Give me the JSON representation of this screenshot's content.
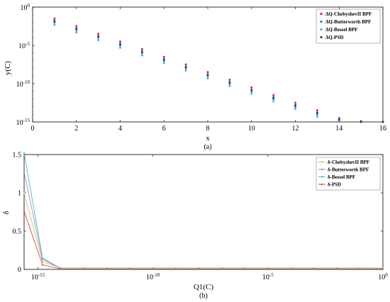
{
  "colors": {
    "chebyshev": "#e02020",
    "butterworth": "#2b6fb8",
    "bessel": "#34b6d8",
    "psd": "#1f3f8f",
    "delta_chebyshev": "#c8c878",
    "delta_butterworth": "#9b8fc6",
    "delta_bessel": "#4fb7c0",
    "delta_psd": "#e04a3c"
  },
  "chart_data": [
    {
      "type": "scatter",
      "caption": "(a)",
      "xlabel": "x",
      "ylabel": "y(C)",
      "xlim": [
        0,
        16
      ],
      "ylim_log10": [
        -15,
        0
      ],
      "yscale": "log",
      "x_ticks": [
        "0",
        "2",
        "4",
        "6",
        "8",
        "10",
        "12",
        "14",
        "16"
      ],
      "y_ticks": [
        {
          "base": "10",
          "exp": "0"
        },
        {
          "base": "10",
          "exp": "-5"
        },
        {
          "base": "10",
          "exp": "-10"
        },
        {
          "base": "10",
          "exp": "-15"
        }
      ],
      "legend_position": "top-right",
      "x": [
        1,
        2,
        3,
        4,
        5,
        6,
        7,
        8,
        9,
        10,
        11,
        12,
        13,
        14,
        15,
        16
      ],
      "series": [
        {
          "name": "ΔQ-ChebyshevII BPF",
          "color_key": "chebyshev",
          "log10_values": [
            -1.5,
            -2.5,
            -3.5,
            -4.5,
            -5.5,
            -6.5,
            -7.5,
            -8.5,
            -9.5,
            -10.5,
            -11.5,
            -12.5,
            -13.5,
            -14.5,
            -14.9,
            -15
          ]
        },
        {
          "name": "ΔQ-Butterworth BPF",
          "color_key": "butterworth",
          "log10_values": [
            -2.0,
            -3.0,
            -4.0,
            -5.0,
            -6.0,
            -7.0,
            -8.0,
            -9.0,
            -10.0,
            -11.0,
            -12.0,
            -13.0,
            -14.0,
            -14.8,
            -15,
            -15
          ]
        },
        {
          "name": "ΔQ-Bessel BPF",
          "color_key": "bessel",
          "log10_values": [
            -2.3,
            -3.3,
            -4.3,
            -5.3,
            -6.3,
            -7.3,
            -8.3,
            -9.3,
            -10.3,
            -11.3,
            -12.3,
            -13.3,
            -14.3,
            -15,
            -15,
            -15
          ]
        },
        {
          "name": "ΔQ-PSD",
          "color_key": "psd",
          "log10_values": [
            -1.8,
            -2.8,
            -3.8,
            -4.8,
            -5.8,
            -6.8,
            -7.8,
            -8.8,
            -9.8,
            -10.8,
            -11.8,
            -12.8,
            -13.8,
            -14.7,
            -15,
            -15
          ]
        }
      ]
    },
    {
      "type": "line",
      "caption": "(b)",
      "xlabel": "Q1(C)",
      "ylabel": "δ",
      "xscale": "log",
      "xlim_log10": [
        -15.6,
        0
      ],
      "ylim": [
        0,
        1.5
      ],
      "x_ticks": [
        {
          "base": "10",
          "exp": "-15"
        },
        {
          "base": "10",
          "exp": "-10"
        },
        {
          "base": "10",
          "exp": "-5"
        },
        {
          "base": "10",
          "exp": "0"
        }
      ],
      "y_ticks": [
        "0",
        "0.5",
        "1",
        "1.5"
      ],
      "legend_position": "top-right",
      "x_log10": [
        -15.6,
        -14.8,
        -14,
        -13,
        -12,
        -11,
        -10,
        -9,
        -8,
        -7,
        -6,
        -5,
        -4,
        -3,
        -2,
        -1,
        0
      ],
      "series": [
        {
          "name": "δ-ChebyshevII BPF",
          "color_key": "delta_chebyshev",
          "values": [
            1.0,
            0.1,
            0.02,
            0.02,
            0.02,
            0.02,
            0.02,
            0.02,
            0.02,
            0.02,
            0.02,
            0.02,
            0.02,
            0.02,
            0.02,
            0.02,
            0.02
          ]
        },
        {
          "name": "δ-Butterworth BPF",
          "color_key": "delta_butterworth",
          "values": [
            1.27,
            0.13,
            0.01,
            0.01,
            0.01,
            0.01,
            0.01,
            0.01,
            0.01,
            0.01,
            0.01,
            0.01,
            0.01,
            0.01,
            0.01,
            0.01,
            0.01
          ]
        },
        {
          "name": "δ-Bessel BPF",
          "color_key": "delta_bessel",
          "values": [
            1.52,
            0.15,
            0.01,
            0.01,
            0.01,
            0.01,
            0.01,
            0.01,
            0.01,
            0.01,
            0.01,
            0.01,
            0.01,
            0.01,
            0.01,
            0.01,
            0.01
          ]
        },
        {
          "name": "δ-PSD",
          "color_key": "delta_psd",
          "values": [
            0.76,
            0.06,
            0.005,
            0.005,
            0.005,
            0.005,
            0.005,
            0.005,
            0.005,
            0.005,
            0.005,
            0.005,
            0.005,
            0.005,
            0.005,
            0.005,
            0.005
          ]
        }
      ]
    }
  ]
}
